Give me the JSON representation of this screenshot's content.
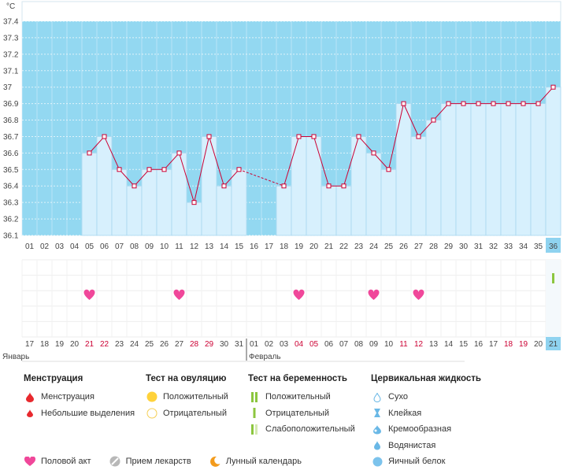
{
  "chart_data": {
    "type": "line",
    "unit_label": "°C",
    "ylim": [
      36.1,
      37.5
    ],
    "y_ticks": [
      "37.4",
      "37.3",
      "37.2",
      "37.1",
      "37",
      "36.9",
      "36.8",
      "36.7",
      "36.6",
      "36.5",
      "36.4",
      "36.3",
      "36.2",
      "36.1"
    ],
    "cycle_days": [
      "01",
      "02",
      "03",
      "04",
      "05",
      "06",
      "07",
      "08",
      "09",
      "10",
      "11",
      "12",
      "13",
      "14",
      "15",
      "16",
      "17",
      "18",
      "19",
      "20",
      "21",
      "22",
      "23",
      "24",
      "25",
      "26",
      "27",
      "28",
      "29",
      "30",
      "31",
      "32",
      "33",
      "34",
      "35",
      "36"
    ],
    "current_cycle_day": "36",
    "temperatures": [
      null,
      null,
      null,
      null,
      36.6,
      36.7,
      36.5,
      36.4,
      36.5,
      36.5,
      36.6,
      36.3,
      36.7,
      36.4,
      36.5,
      null,
      null,
      36.4,
      36.7,
      36.7,
      36.4,
      36.4,
      36.7,
      36.6,
      36.5,
      36.9,
      36.7,
      36.8,
      36.9,
      36.9,
      36.9,
      36.9,
      36.9,
      36.9,
      36.9,
      37.0
    ],
    "dashed_gap": {
      "from_day": "15",
      "to_day": "18"
    },
    "intercourse_days": [
      "05",
      "11",
      "19",
      "24",
      "27"
    ],
    "pregnancy_test": {
      "day": "36",
      "result": "Отрицательный"
    },
    "calendar_dates": [
      "17",
      "18",
      "19",
      "20",
      "21",
      "22",
      "23",
      "24",
      "25",
      "26",
      "27",
      "28",
      "29",
      "30",
      "31",
      "01",
      "02",
      "03",
      "04",
      "05",
      "06",
      "07",
      "08",
      "09",
      "10",
      "11",
      "12",
      "13",
      "14",
      "15",
      "16",
      "17",
      "18",
      "19",
      "20",
      "21"
    ],
    "weekend_indices": [
      4,
      5,
      11,
      12,
      18,
      19,
      25,
      26,
      32,
      33
    ],
    "months": [
      {
        "label": "Январь",
        "start_index": 0
      },
      {
        "label": "Февраль",
        "start_index": 15
      }
    ],
    "colors": {
      "background": "#93d8f1",
      "bar_fill": "#d7f0fd",
      "bar_stroke": "#a9d7ef",
      "line": "#cc0033",
      "marker_fill": "#ffffff",
      "heart": "#f0479a",
      "current_day_bg": "#8fd3f0",
      "weekend_text": "#cc0033",
      "pregnancy_negative": "#8cc63f"
    }
  },
  "legend": {
    "menstruation": {
      "title": "Менструация",
      "items": [
        "Менструация",
        "Небольшие выделения"
      ]
    },
    "ovulation": {
      "title": "Тест на овуляцию",
      "items": [
        "Положительный",
        "Отрицательный"
      ]
    },
    "pregnancy": {
      "title": "Тест на беременность",
      "items": [
        "Положительный",
        "Отрицательный",
        "Слабоположительный"
      ]
    },
    "cervical": {
      "title": "Цервикальная жидкость",
      "items": [
        "Сухо",
        "Клейкая",
        "Кремообразная",
        "Водянистая",
        "Яичный белок"
      ]
    },
    "bottom": [
      "Половой акт",
      "Прием лекарств",
      "Лунный календарь"
    ]
  }
}
